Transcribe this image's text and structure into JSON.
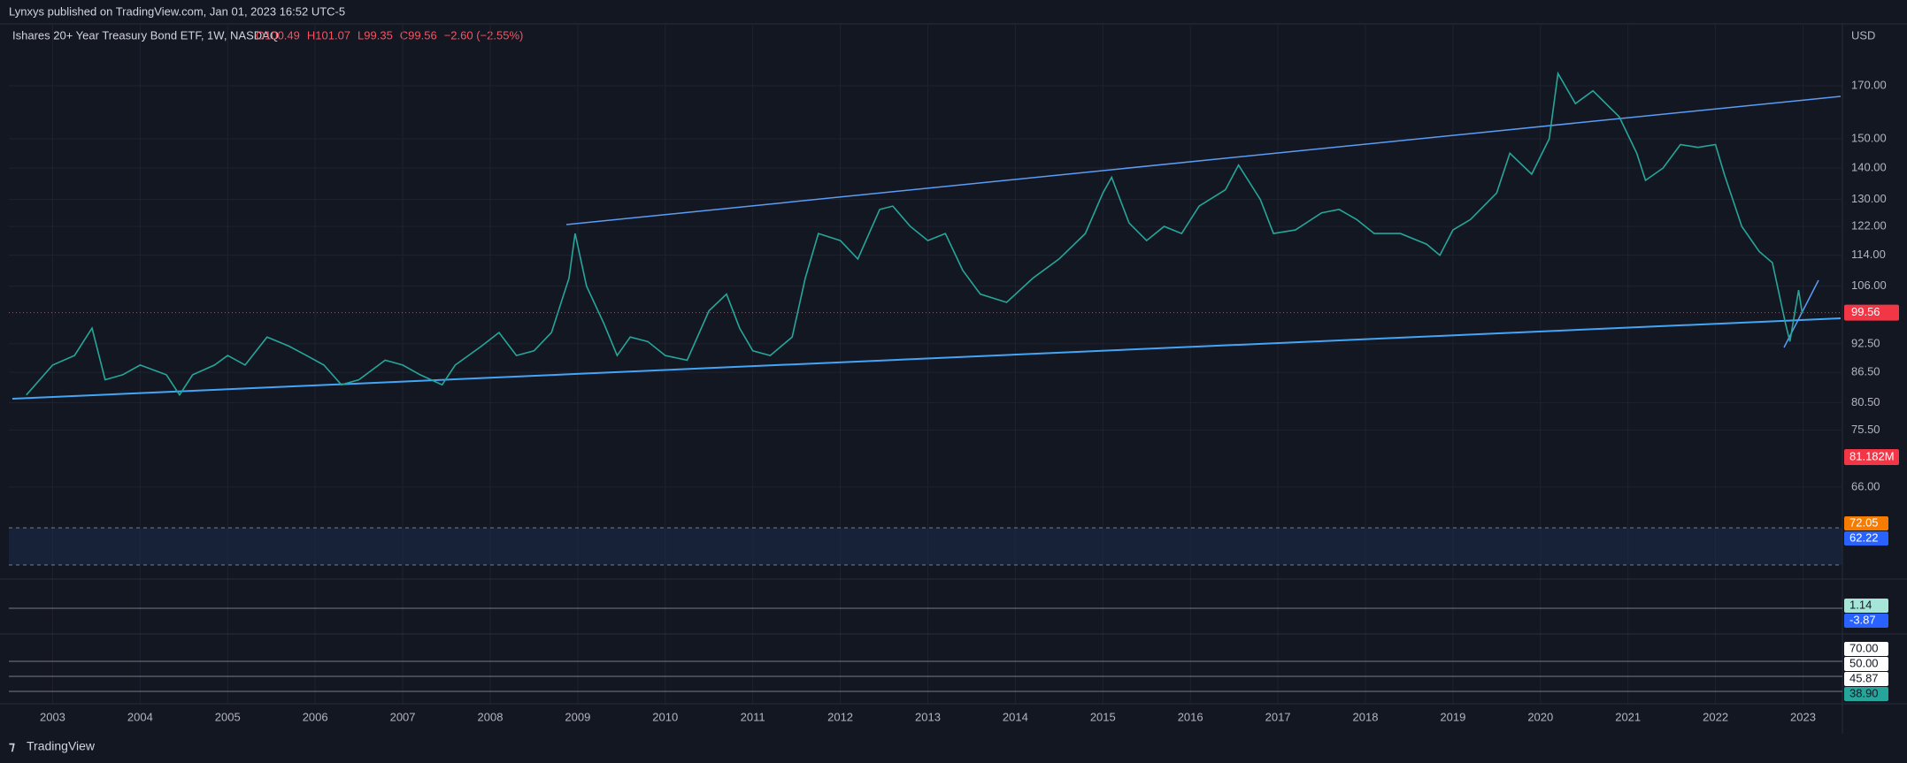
{
  "header": {
    "publisher": "Lynxys published on TradingView.com, Jan 01, 2023 16:52 UTC-5"
  },
  "chart_data": {
    "type": "line",
    "title": "Ishares 20+ Year Treasury Bond ETF, 1W, NASDAQ",
    "ohlc": [
      "O100.49",
      "H101.07",
      "L99.35",
      "C99.56",
      "−2.60 (−2.55%)"
    ],
    "currency": "USD",
    "color": "#26a69a",
    "log": true,
    "grid": true,
    "x": [
      2002.7,
      2003.0,
      2003.25,
      2003.45,
      2003.6,
      2003.8,
      2004.0,
      2004.3,
      2004.45,
      2004.6,
      2004.85,
      2005.0,
      2005.2,
      2005.45,
      2005.7,
      2005.9,
      2006.1,
      2006.3,
      2006.5,
      2006.8,
      2007.0,
      2007.2,
      2007.45,
      2007.6,
      2007.9,
      2008.1,
      2008.3,
      2008.5,
      2008.7,
      2008.9,
      2008.97,
      2009.1,
      2009.3,
      2009.45,
      2009.6,
      2009.8,
      2010.0,
      2010.25,
      2010.5,
      2010.7,
      2010.85,
      2011.0,
      2011.2,
      2011.45,
      2011.6,
      2011.75,
      2012.0,
      2012.2,
      2012.45,
      2012.6,
      2012.8,
      2013.0,
      2013.2,
      2013.4,
      2013.6,
      2013.9,
      2014.2,
      2014.5,
      2014.8,
      2015.0,
      2015.1,
      2015.3,
      2015.5,
      2015.7,
      2015.9,
      2016.1,
      2016.4,
      2016.55,
      2016.8,
      2016.95,
      2017.2,
      2017.5,
      2017.7,
      2017.9,
      2018.1,
      2018.4,
      2018.7,
      2018.85,
      2019.0,
      2019.2,
      2019.5,
      2019.65,
      2019.9,
      2020.1,
      2020.2,
      2020.4,
      2020.6,
      2020.9,
      2021.1,
      2021.2,
      2021.4,
      2021.6,
      2021.8,
      2022.0,
      2022.1,
      2022.3,
      2022.5,
      2022.65,
      2022.8,
      2022.85,
      2022.95,
      2022.99
    ],
    "values": [
      82,
      88,
      90,
      96,
      85,
      86,
      88,
      86,
      82,
      86,
      88,
      90,
      88,
      94,
      92,
      90,
      88,
      84,
      85,
      89,
      88,
      86,
      84,
      88,
      92,
      95,
      90,
      91,
      95,
      108,
      120,
      106,
      97,
      90,
      94,
      93,
      90,
      89,
      100,
      104,
      96,
      91,
      90,
      94,
      108,
      120,
      118,
      113,
      127,
      128,
      122,
      118,
      120,
      110,
      104,
      102,
      108,
      113,
      120,
      132,
      137,
      123,
      118,
      122,
      120,
      128,
      133,
      141,
      130,
      120,
      121,
      126,
      127,
      124,
      120,
      120,
      117,
      114,
      121,
      124,
      132,
      145,
      138,
      150,
      175,
      163,
      168,
      158,
      145,
      136,
      140,
      148,
      147,
      148,
      138,
      122,
      115,
      112,
      97,
      93,
      105,
      99.56
    ],
    "xlim": [
      2002.5,
      2023.45
    ],
    "xticks": [
      2003,
      2004,
      2005,
      2006,
      2007,
      2008,
      2009,
      2010,
      2011,
      2012,
      2013,
      2014,
      2015,
      2016,
      2017,
      2018,
      2019,
      2020,
      2021,
      2022,
      2023
    ],
    "ylim": [
      62.5,
      196.7
    ],
    "yticks": [
      {
        "value": 170,
        "label": "170.00"
      },
      {
        "value": 150,
        "label": "150.00"
      },
      {
        "value": 140,
        "label": "140.00"
      },
      {
        "value": 130,
        "label": "130.00"
      },
      {
        "value": 122,
        "label": "122.00"
      },
      {
        "value": 114,
        "label": "114.00"
      },
      {
        "value": 106,
        "label": "106.00"
      },
      {
        "value": 92.5,
        "label": "92.50"
      },
      {
        "value": 86.5,
        "label": "86.50"
      },
      {
        "value": 80.5,
        "label": "80.50"
      },
      {
        "value": 75.5,
        "label": "75.50"
      },
      {
        "value": 66,
        "label": "66.00"
      }
    ],
    "last_price": 99.56,
    "volume_label": "81.182M"
  },
  "panes": [
    {
      "labels": [
        "72.05",
        "62.22"
      ]
    },
    {
      "labels": [
        "1.14",
        "-3.87"
      ]
    },
    {
      "labels": [
        "70.00",
        "50.00",
        "45.87",
        "38.90"
      ]
    }
  ],
  "footer": {
    "brand": "TradingView"
  }
}
